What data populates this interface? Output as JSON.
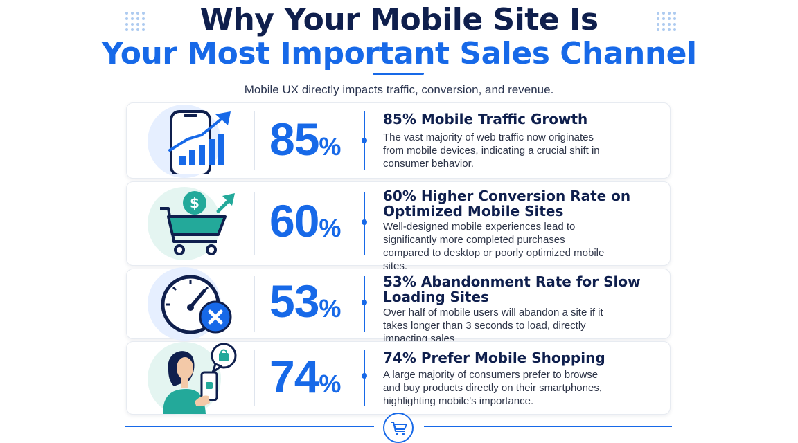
{
  "header": {
    "title_line1": "Why Your Mobile Site Is",
    "title_line2": "Your Most Important Sales Channel",
    "subtitle": "Mobile UX directly impacts traffic, conversion, and revenue."
  },
  "stats": [
    {
      "number": "85",
      "unit": "%",
      "heading": "85% Mobile Traffic Growth",
      "description": "The vast majority of web traffic now originates from mobile devices, indicating a crucial shift in consumer behavior.",
      "icon": "phone-growth-chart-icon"
    },
    {
      "number": "60",
      "unit": "%",
      "heading": "60% Higher Conversion Rate on Optimized Mobile Sites",
      "description": "Well-designed mobile experiences lead to significantly more completed purchases compared to desktop or poorly optimized mobile sites.",
      "icon": "shopping-cart-dollar-icon"
    },
    {
      "number": "53",
      "unit": "%",
      "heading": "53% Abandonment Rate for Slow Loading Sites",
      "description": "Over half of mobile users will abandon a site if it takes longer than 3 seconds to load, directly impacting sales.",
      "icon": "speedometer-cancel-icon"
    },
    {
      "number": "74",
      "unit": "%",
      "heading": "74% Prefer Mobile Shopping",
      "description": "A large majority of consumers prefer to browse and buy products directly on their smartphones, highlighting mobile's importance.",
      "icon": "woman-mobile-shopping-icon"
    }
  ],
  "footer": {
    "icon": "shopping-cart-icon"
  },
  "colors": {
    "navy": "#0f1f4d",
    "accent_blue": "#1769e8",
    "teal": "#23a99a",
    "light_blue_bg": "#e6efff",
    "light_teal_bg": "#e4f5f1"
  }
}
